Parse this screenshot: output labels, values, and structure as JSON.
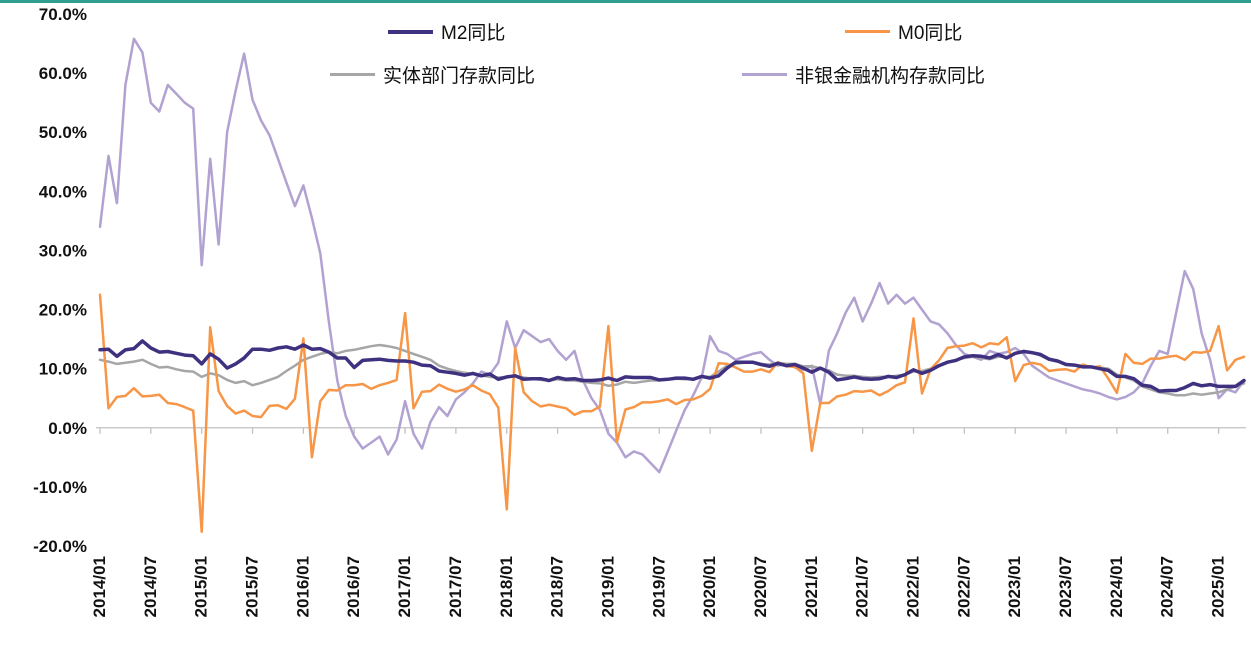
{
  "colors": {
    "top_border": "#2f9e8f",
    "axis": "#c0c0c0",
    "text": "#111111"
  },
  "chart_data": {
    "type": "line",
    "title": "",
    "xlabel": "",
    "ylabel": "",
    "x_monthly_start": "2014/01",
    "x_monthly_end": "2025/04",
    "months": 136,
    "ylim": [
      -20,
      70
    ],
    "grid": false,
    "legend_position": "top",
    "axis_color": "#c0c0c0",
    "y_ticks": [
      "70.0%",
      "60.0%",
      "50.0%",
      "40.0%",
      "30.0%",
      "20.0%",
      "10.0%",
      "0.0%",
      "-10.0%",
      "-20.0%"
    ],
    "x_tick_labels": [
      "2014/01",
      "2014/07",
      "2015/01",
      "2015/07",
      "2016/01",
      "2016/07",
      "2017/01",
      "2017/07",
      "2018/01",
      "2018/07",
      "2019/01",
      "2019/07",
      "2020/01",
      "2020/07",
      "2021/01",
      "2021/07",
      "2022/01",
      "2022/07",
      "2023/01",
      "2023/07",
      "2024/01",
      "2024/07",
      "2025/01"
    ],
    "x_tick_step_months": 6,
    "series": [
      {
        "name": "M2同比",
        "color": "#3f3180",
        "width": 3.5,
        "values": [
          13.2,
          13.3,
          12.1,
          13.2,
          13.4,
          14.7,
          13.5,
          12.8,
          12.9,
          12.6,
          12.3,
          12.2,
          10.8,
          12.5,
          11.6,
          10.1,
          10.8,
          11.8,
          13.3,
          13.3,
          13.1,
          13.5,
          13.7,
          13.3,
          14.0,
          13.3,
          13.4,
          12.8,
          11.8,
          11.8,
          10.2,
          11.4,
          11.5,
          11.6,
          11.4,
          11.3,
          11.3,
          11.1,
          10.6,
          10.5,
          9.6,
          9.4,
          9.2,
          8.9,
          9.2,
          8.8,
          9.1,
          8.2,
          8.6,
          8.8,
          8.2,
          8.3,
          8.3,
          8.0,
          8.5,
          8.2,
          8.3,
          8.0,
          8.0,
          8.1,
          8.4,
          8.0,
          8.6,
          8.5,
          8.5,
          8.5,
          8.1,
          8.2,
          8.4,
          8.4,
          8.2,
          8.7,
          8.4,
          8.8,
          10.1,
          11.1,
          11.1,
          11.1,
          10.7,
          10.4,
          10.9,
          10.5,
          10.7,
          10.1,
          9.4,
          10.1,
          9.4,
          8.1,
          8.3,
          8.6,
          8.3,
          8.2,
          8.3,
          8.7,
          8.5,
          9.0,
          9.8,
          9.2,
          9.7,
          10.5,
          11.1,
          11.4,
          12.0,
          12.2,
          12.1,
          11.8,
          12.4,
          11.8,
          12.6,
          12.9,
          12.7,
          12.4,
          11.6,
          11.3,
          10.7,
          10.6,
          10.3,
          10.3,
          10.0,
          9.7,
          8.7,
          8.7,
          8.3,
          7.2,
          7.0,
          6.2,
          6.3,
          6.3,
          6.8,
          7.5,
          7.1,
          7.3,
          7.0,
          7.0,
          7.0,
          8.0
        ]
      },
      {
        "name": "M0同比",
        "color": "#f79646",
        "width": 2.5,
        "values": [
          22.5,
          3.3,
          5.2,
          5.4,
          6.7,
          5.3,
          5.4,
          5.6,
          4.2,
          4.0,
          3.5,
          2.9,
          -17.6,
          17.0,
          6.2,
          3.7,
          2.4,
          2.9,
          2.0,
          1.8,
          3.7,
          3.8,
          3.2,
          4.9,
          15.1,
          -5.0,
          4.5,
          6.4,
          6.3,
          7.2,
          7.2,
          7.4,
          6.6,
          7.2,
          7.6,
          8.1,
          19.4,
          3.3,
          6.1,
          6.2,
          7.3,
          6.6,
          6.1,
          6.5,
          7.2,
          6.3,
          5.7,
          3.4,
          -13.8,
          13.5,
          6.0,
          4.5,
          3.6,
          3.9,
          3.6,
          3.3,
          2.2,
          2.8,
          2.8,
          3.6,
          17.2,
          -2.4,
          3.1,
          3.5,
          4.3,
          4.3,
          4.5,
          4.8,
          4.0,
          4.7,
          4.8,
          5.4,
          6.6,
          10.9,
          10.8,
          10.2,
          9.5,
          9.5,
          9.9,
          9.4,
          11.1,
          10.4,
          10.3,
          9.2,
          -3.9,
          4.2,
          4.2,
          5.3,
          5.6,
          6.2,
          6.1,
          6.3,
          5.5,
          6.2,
          7.2,
          7.7,
          18.5,
          5.8,
          9.9,
          11.4,
          13.5,
          13.8,
          13.9,
          14.3,
          13.6,
          14.3,
          14.1,
          15.3,
          7.9,
          10.6,
          11.0,
          10.7,
          9.6,
          9.8,
          9.9,
          9.5,
          10.7,
          10.2,
          10.4,
          8.3,
          5.9,
          12.5,
          11.0,
          10.8,
          11.7,
          11.7,
          12.0,
          12.2,
          11.5,
          12.8,
          12.7,
          13.0,
          17.2,
          9.7,
          11.5,
          12.0
        ]
      },
      {
        "name": "实体部门存款同比",
        "color": "#a6a6a6",
        "width": 2.5,
        "values": [
          11.5,
          11.2,
          10.8,
          11.0,
          11.2,
          11.5,
          10.8,
          10.2,
          10.3,
          9.9,
          9.6,
          9.5,
          8.6,
          9.2,
          8.9,
          8.1,
          7.6,
          7.9,
          7.2,
          7.6,
          8.1,
          8.6,
          9.6,
          10.5,
          11.5,
          12.0,
          12.5,
          12.8,
          12.6,
          13.0,
          13.2,
          13.5,
          13.8,
          14.0,
          13.8,
          13.5,
          13.0,
          12.5,
          12.0,
          11.5,
          10.5,
          10.0,
          9.6,
          9.3,
          9.1,
          8.9,
          8.6,
          8.5,
          8.6,
          8.8,
          8.5,
          8.3,
          8.1,
          8.0,
          8.2,
          8.0,
          8.0,
          7.8,
          7.6,
          7.5,
          7.1,
          7.3,
          7.8,
          7.6,
          7.8,
          8.0,
          8.0,
          8.2,
          8.3,
          8.2,
          8.3,
          8.6,
          8.6,
          9.5,
          10.5,
          10.8,
          11.0,
          11.0,
          10.8,
          10.7,
          11.0,
          10.8,
          10.8,
          10.4,
          10.4,
          10.1,
          9.7,
          9.0,
          8.8,
          8.8,
          8.6,
          8.5,
          8.6,
          8.6,
          8.8,
          9.0,
          9.5,
          9.6,
          10.0,
          10.5,
          11.0,
          11.5,
          11.8,
          12.0,
          11.8,
          11.6,
          12.0,
          12.0,
          12.5,
          13.0,
          12.8,
          12.2,
          11.5,
          11.2,
          10.8,
          10.6,
          10.5,
          10.3,
          10.2,
          10.0,
          9.0,
          8.5,
          8.0,
          7.0,
          6.5,
          6.0,
          5.8,
          5.5,
          5.5,
          5.8,
          5.6,
          5.8,
          6.0,
          6.5,
          7.0,
          7.5
        ]
      },
      {
        "name": "非银金融机构存款同比",
        "color": "#b2a2d2",
        "width": 2.5,
        "values": [
          34.0,
          46.0,
          38.0,
          58.0,
          65.8,
          63.5,
          55.0,
          53.5,
          58.0,
          56.5,
          55.0,
          54.0,
          27.5,
          45.5,
          31.0,
          50.0,
          57.0,
          63.3,
          55.5,
          52.0,
          49.5,
          45.5,
          41.5,
          37.5,
          41.0,
          35.5,
          29.5,
          18.0,
          8.0,
          2.0,
          -1.5,
          -3.5,
          -2.5,
          -1.5,
          -4.5,
          -2.0,
          4.5,
          -1.0,
          -3.5,
          1.0,
          3.5,
          2.0,
          4.8,
          6.0,
          7.5,
          9.5,
          9.0,
          11.0,
          18.0,
          13.5,
          16.5,
          15.5,
          14.5,
          15.0,
          13.0,
          11.5,
          13.0,
          8.0,
          5.0,
          3.0,
          -1.0,
          -2.5,
          -5.0,
          -4.0,
          -4.5,
          -6.0,
          -7.5,
          -4.0,
          -0.5,
          3.0,
          5.5,
          8.5,
          15.5,
          13.0,
          12.5,
          11.5,
          12.0,
          12.5,
          12.8,
          11.5,
          10.5,
          10.8,
          10.2,
          9.8,
          10.5,
          4.0,
          13.0,
          16.0,
          19.5,
          22.0,
          18.0,
          21.0,
          24.5,
          21.0,
          22.5,
          21.0,
          22.0,
          20.0,
          18.0,
          17.5,
          16.0,
          14.0,
          12.5,
          12.0,
          11.5,
          13.0,
          12.5,
          12.8,
          13.5,
          12.5,
          10.5,
          9.5,
          8.5,
          8.0,
          7.5,
          7.0,
          6.5,
          6.2,
          5.8,
          5.2,
          4.8,
          5.2,
          6.0,
          7.5,
          10.5,
          13.0,
          12.5,
          19.5,
          26.5,
          23.5,
          16.0,
          11.5,
          5.0,
          6.5,
          6.0,
          8.0
        ]
      }
    ]
  }
}
